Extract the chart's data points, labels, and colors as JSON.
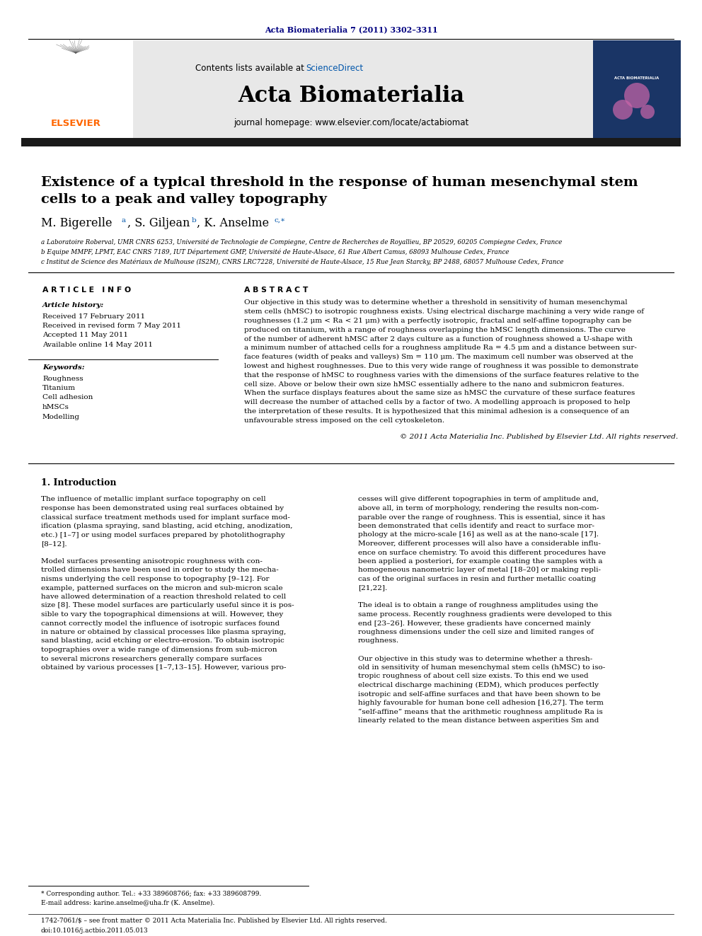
{
  "journal_ref": "Acta Biomaterialia 7 (2011) 3302–3311",
  "contents_text": "Contents lists available at",
  "sciencedirect_text": "ScienceDirect",
  "journal_name": "Acta Biomaterialia",
  "journal_homepage": "journal homepage: www.elsevier.com/locate/actabiomat",
  "article_info_header": "A R T I C L E   I N F O",
  "article_history_header": "Article history:",
  "history_lines": [
    "Received 17 February 2011",
    "Received in revised form 7 May 2011",
    "Accepted 11 May 2011",
    "Available online 14 May 2011"
  ],
  "keywords_header": "Keywords:",
  "keywords": [
    "Roughness",
    "Titanium",
    "Cell adhesion",
    "hMSCs",
    "Modelling"
  ],
  "abstract_header": "A B S T R A C T",
  "section1_title": "1. Introduction",
  "footnote_corresponding": "* Corresponding author. Tel.: +33 389608766; fax: +33 389608799.",
  "footnote_email": "E-mail address: karine.anselme@uha.fr (K. Anselme).",
  "footer_left": "1742-7061/$ – see front matter © 2011 Acta Materialia Inc. Published by Elsevier Ltd. All rights reserved.",
  "footer_doi": "doi:10.1016/j.actbio.2011.05.013",
  "bg_color": "#ffffff",
  "header_bg": "#e8e8e8",
  "black_bar_color": "#1a1a1a",
  "blue_link_color": "#0055aa",
  "elsevier_orange": "#FF6600",
  "journal_ref_color": "#000080",
  "affil_a": "a Laboratoire Roberval, UMR CNRS 6253, Université de Technologie de Compiegne, Centre de Recherches de Royallieu, BP 20529, 60205 Compiegne Cedex, France",
  "affil_b": "b Equipe MMPF, LPMT, EAC CNRS 7189, IUT Département GMP, Université de Haute-Alsace, 61 Rue Albert Camus, 68093 Mulhouse Cedex, France",
  "affil_c": "c Institut de Science des Matériaux de Mulhouse (IS2M), CNRS LRC7228, Université de Haute-Alsace, 15 Rue Jean Starcky, BP 2488, 68057 Mulhouse Cedex, France",
  "abstract_lines": [
    "Our objective in this study was to determine whether a threshold in sensitivity of human mesenchymal",
    "stem cells (hMSC) to isotropic roughness exists. Using electrical discharge machining a very wide range of",
    "roughnesses (1.2 μm < Ra < 21 μm) with a perfectly isotropic, fractal and self-affine topography can be",
    "produced on titanium, with a range of roughness overlapping the hMSC length dimensions. The curve",
    "of the number of adherent hMSC after 2 days culture as a function of roughness showed a U-shape with",
    "a minimum number of attached cells for a roughness amplitude Ra = 4.5 μm and a distance between sur-",
    "face features (width of peaks and valleys) Sm = 110 μm. The maximum cell number was observed at the",
    "lowest and highest roughnesses. Due to this very wide range of roughness it was possible to demonstrate",
    "that the response of hMSC to roughness varies with the dimensions of the surface features relative to the",
    "cell size. Above or below their own size hMSC essentially adhere to the nano and submicron features.",
    "When the surface displays features about the same size as hMSC the curvature of these surface features",
    "will decrease the number of attached cells by a factor of two. A modelling approach is proposed to help",
    "the interpretation of these results. It is hypothesized that this minimal adhesion is a consequence of an",
    "unfavourable stress imposed on the cell cytoskeleton.",
    "© 2011 Acta Materialia Inc. Published by Elsevier Ltd. All rights reserved."
  ],
  "col1_lines": [
    "The influence of metallic implant surface topography on cell",
    "response has been demonstrated using real surfaces obtained by",
    "classical surface treatment methods used for implant surface mod-",
    "ification (plasma spraying, sand blasting, acid etching, anodization,",
    "etc.) [1–7] or using model surfaces prepared by photolithography",
    "[8–12].",
    "",
    "Model surfaces presenting anisotropic roughness with con-",
    "trolled dimensions have been used in order to study the mecha-",
    "nisms underlying the cell response to topography [9–12]. For",
    "example, patterned surfaces on the micron and sub-micron scale",
    "have allowed determination of a reaction threshold related to cell",
    "size [8]. These model surfaces are particularly useful since it is pos-",
    "sible to vary the topographical dimensions at will. However, they",
    "cannot correctly model the influence of isotropic surfaces found",
    "in nature or obtained by classical processes like plasma spraying,",
    "sand blasting, acid etching or electro-erosion. To obtain isotropic",
    "topographies over a wide range of dimensions from sub-micron",
    "to several microns researchers generally compare surfaces",
    "obtained by various processes [1–7,13–15]. However, various pro-"
  ],
  "col2_lines": [
    "cesses will give different topographies in term of amplitude and,",
    "above all, in term of morphology, rendering the results non-com-",
    "parable over the range of roughness. This is essential, since it has",
    "been demonstrated that cells identify and react to surface mor-",
    "phology at the micro-scale [16] as well as at the nano-scale [17].",
    "Moreover, different processes will also have a considerable influ-",
    "ence on surface chemistry. To avoid this different procedures have",
    "been applied a posteriori, for example coating the samples with a",
    "homogeneous nanometric layer of metal [18–20] or making repli-",
    "cas of the original surfaces in resin and further metallic coating",
    "[21,22].",
    "",
    "The ideal is to obtain a range of roughness amplitudes using the",
    "same process. Recently roughness gradients were developed to this",
    "end [23–26]. However, these gradients have concerned mainly",
    "roughness dimensions under the cell size and limited ranges of",
    "roughness.",
    "",
    "Our objective in this study was to determine whether a thresh-",
    "old in sensitivity of human mesenchymal stem cells (hMSC) to iso-",
    "tropic roughness of about cell size exists. To this end we used",
    "electrical discharge machining (EDM), which produces perfectly",
    "isotropic and self-affine surfaces and that have been shown to be",
    "highly favourable for human bone cell adhesion [16,27]. The term",
    "“self-affine” means that the arithmetic roughness amplitude Ra is",
    "linearly related to the mean distance between asperities Sm and"
  ]
}
